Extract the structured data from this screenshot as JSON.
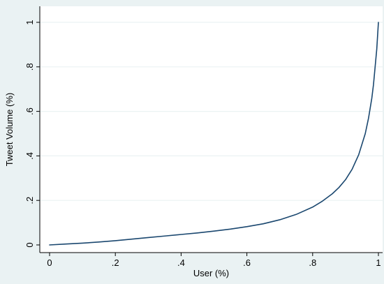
{
  "chart_data": {
    "type": "line",
    "title": "",
    "xlabel": "User (%)",
    "ylabel": "Tweet Volume (%)",
    "xlim": [
      0,
      1
    ],
    "ylim": [
      0,
      1
    ],
    "x_ticks": [
      {
        "value": 0,
        "label": "0"
      },
      {
        "value": 0.2,
        "label": ".2"
      },
      {
        "value": 0.4,
        "label": ".4"
      },
      {
        "value": 0.6,
        "label": ".6"
      },
      {
        "value": 0.8,
        "label": ".8"
      },
      {
        "value": 1,
        "label": "1"
      }
    ],
    "y_ticks": [
      {
        "value": 0,
        "label": "0"
      },
      {
        "value": 0.2,
        "label": ".2"
      },
      {
        "value": 0.4,
        "label": ".4"
      },
      {
        "value": 0.6,
        "label": ".6"
      },
      {
        "value": 0.8,
        "label": ".8"
      },
      {
        "value": 1,
        "label": "1"
      }
    ],
    "grid": "horizontal",
    "legend": "none",
    "series": [
      {
        "x": [
          0,
          0.05,
          0.1,
          0.15,
          0.2,
          0.25,
          0.3,
          0.35,
          0.4,
          0.45,
          0.5,
          0.55,
          0.6,
          0.65,
          0.7,
          0.75,
          0.8,
          0.83,
          0.86,
          0.88,
          0.9,
          0.92,
          0.94,
          0.96,
          0.97,
          0.98,
          0.985,
          0.99,
          0.995,
          1
        ],
        "y": [
          0,
          0.004,
          0.008,
          0.013,
          0.019,
          0.026,
          0.033,
          0.04,
          0.047,
          0.054,
          0.062,
          0.071,
          0.082,
          0.095,
          0.113,
          0.137,
          0.17,
          0.197,
          0.23,
          0.258,
          0.293,
          0.34,
          0.405,
          0.5,
          0.57,
          0.66,
          0.72,
          0.8,
          0.88,
          1
        ],
        "color": "#1a476f"
      }
    ],
    "colors": {
      "outer_background": "#eaf2f3",
      "plot_background": "#ffffff",
      "gridline": "#eaf2f3",
      "axis": "#000000",
      "line": "#1a476f"
    }
  }
}
